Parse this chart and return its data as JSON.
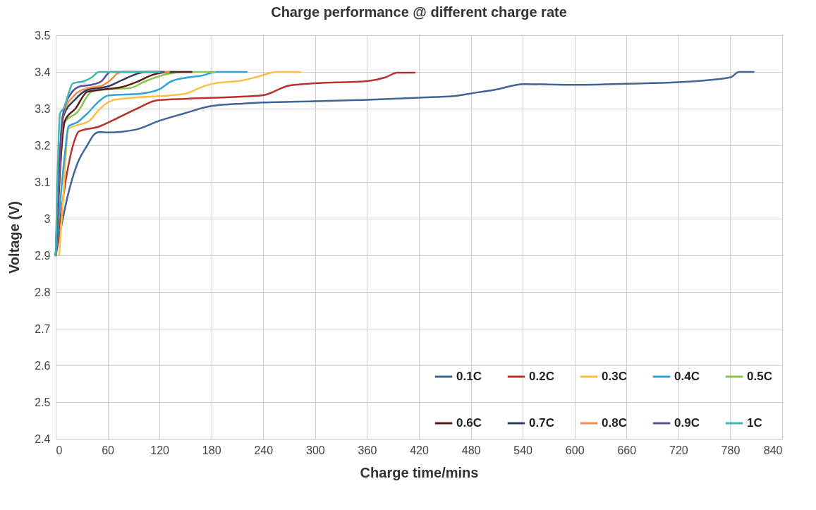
{
  "chart_data": {
    "type": "line",
    "title": "Charge performance @ different charge rate",
    "xlabel": "Charge time/mins",
    "ylabel": "Voltage (V)",
    "xlim": [
      0,
      840
    ],
    "xticks": [
      0,
      60,
      120,
      180,
      240,
      300,
      360,
      420,
      480,
      540,
      600,
      660,
      720,
      780,
      840
    ],
    "ylim": [
      2.4,
      3.5
    ],
    "yticks": [
      2.4,
      2.5,
      2.6,
      2.7,
      2.8,
      2.9,
      3,
      3.1,
      3.2,
      3.3,
      3.4,
      3.5
    ],
    "grid": true,
    "legend": "bottom right",
    "marker": "none",
    "line_style": "solid",
    "series": [
      {
        "name": "0.1C",
        "color": "#3e6593",
        "x": [
          0,
          6.5,
          14.7,
          25,
          36.5,
          44.6,
          50,
          61,
          93,
          120,
          150,
          180,
          218,
          300,
          360,
          420,
          460,
          479,
          511,
          541,
          600,
          660,
          720,
          780,
          790,
          807
        ],
        "values": [
          2.9,
          2.98,
          3.07,
          3.15,
          3.2,
          3.23,
          3.236,
          3.235,
          3.243,
          3.267,
          3.288,
          3.307,
          3.314,
          3.32,
          3.324,
          3.33,
          3.334,
          3.341,
          3.353,
          3.367,
          3.365,
          3.368,
          3.372,
          3.385,
          3.4,
          3.4
        ]
      },
      {
        "name": "0.2C",
        "color": "#b8312f",
        "x": [
          0,
          12,
          20,
          27,
          50,
          72,
          94,
          118,
          153,
          218,
          241,
          270,
          300,
          360,
          381,
          395,
          415
        ],
        "values": [
          2.9,
          3.11,
          3.2,
          3.238,
          3.251,
          3.275,
          3.3,
          3.323,
          3.327,
          3.333,
          3.337,
          3.363,
          3.369,
          3.375,
          3.385,
          3.398,
          3.398
        ]
      },
      {
        "name": "0.3C",
        "color": "#fbbf45",
        "x": [
          4,
          9,
          14.7,
          25,
          39,
          50,
          66,
          85.5,
          120,
          150,
          169,
          180,
          218,
          232,
          256,
          283
        ],
        "values": [
          2.9,
          3.07,
          3.245,
          3.255,
          3.267,
          3.297,
          3.323,
          3.329,
          3.334,
          3.341,
          3.359,
          3.367,
          3.378,
          3.386,
          3.4,
          3.4
        ]
      },
      {
        "name": "0.4C",
        "color": "#2ea3d9",
        "x": [
          0,
          10.6,
          14.7,
          25,
          36.6,
          50,
          61,
          98.5,
          120,
          134,
          153,
          169,
          186,
          221
        ],
        "values": [
          2.9,
          3.176,
          3.251,
          3.263,
          3.287,
          3.32,
          3.336,
          3.341,
          3.353,
          3.375,
          3.385,
          3.39,
          3.4,
          3.4
        ]
      },
      {
        "name": "0.5C",
        "color": "#8bc54a",
        "x": [
          0,
          10.6,
          25,
          41.5,
          61,
          85.5,
          104,
          131,
          147,
          184
        ],
        "values": [
          2.9,
          3.264,
          3.29,
          3.346,
          3.353,
          3.356,
          3.375,
          3.395,
          3.4,
          3.4
        ]
      },
      {
        "name": "0.6C",
        "color": "#5c1a1b",
        "x": [
          0,
          10.6,
          22.8,
          36.6,
          61,
          77,
          96,
          112,
          134,
          157
        ],
        "values": [
          2.9,
          3.267,
          3.3,
          3.346,
          3.354,
          3.359,
          3.375,
          3.392,
          3.4,
          3.4
        ]
      },
      {
        "name": "0.7C",
        "color": "#2e3a5c",
        "x": [
          0,
          9,
          22.8,
          36.6,
          61,
          77,
          94,
          104,
          138
        ],
        "values": [
          2.9,
          3.28,
          3.326,
          3.351,
          3.361,
          3.378,
          3.395,
          3.4,
          3.4
        ]
      },
      {
        "name": "0.8C",
        "color": "#ee8c4a",
        "x": [
          0,
          9,
          22.8,
          36.6,
          53,
          63.5,
          72,
          77,
          131
        ],
        "values": [
          2.9,
          3.287,
          3.339,
          3.356,
          3.362,
          3.378,
          3.397,
          3.4,
          3.4
        ]
      },
      {
        "name": "0.9C",
        "color": "#5b4f9c",
        "x": [
          0,
          8,
          17,
          28.5,
          41.5,
          53,
          61,
          63,
          125
        ],
        "values": [
          2.9,
          3.28,
          3.339,
          3.361,
          3.365,
          3.375,
          3.397,
          3.4,
          3.4
        ]
      },
      {
        "name": "1C",
        "color": "#3fb6b2",
        "x": [
          0,
          5,
          9,
          20,
          33,
          41.5,
          50,
          120
        ],
        "values": [
          2.9,
          3.287,
          3.3,
          3.369,
          3.375,
          3.385,
          3.4,
          3.4
        ]
      }
    ]
  }
}
